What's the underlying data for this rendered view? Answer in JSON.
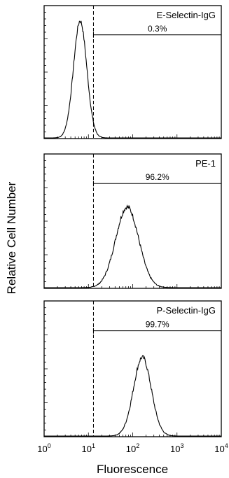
{
  "chart_data": {
    "type": "histogram-panels",
    "ylabel": "Relative Cell Number",
    "xlabel": "Fluorescence",
    "x_scale": "log",
    "xlim": [
      1,
      10000
    ],
    "ylim": [
      0,
      1
    ],
    "gate_x": 13,
    "x_tick_labels": [
      {
        "value": 1,
        "base": "10",
        "exp": "0"
      },
      {
        "value": 10,
        "base": "10",
        "exp": "1"
      },
      {
        "value": 100,
        "base": "10",
        "exp": "2"
      },
      {
        "value": 1000,
        "base": "10",
        "exp": "3"
      },
      {
        "value": 10000,
        "base": "10",
        "exp": "4"
      }
    ],
    "panels": [
      {
        "label": "E-Selectin-IgG",
        "percent": "0.3%",
        "gate_bar_level": 0.78,
        "peak_x": 6.5,
        "sigma_log": 0.15,
        "peak_height": 0.88
      },
      {
        "label": "PE-1",
        "percent": "96.2%",
        "gate_bar_level": 0.78,
        "peak_x": 75,
        "sigma_log": 0.26,
        "peak_height": 0.6
      },
      {
        "label": "P-Selectin-IgG",
        "percent": "99.7%",
        "gate_bar_level": 0.78,
        "peak_x": 165,
        "sigma_log": 0.2,
        "peak_height": 0.58
      }
    ]
  }
}
